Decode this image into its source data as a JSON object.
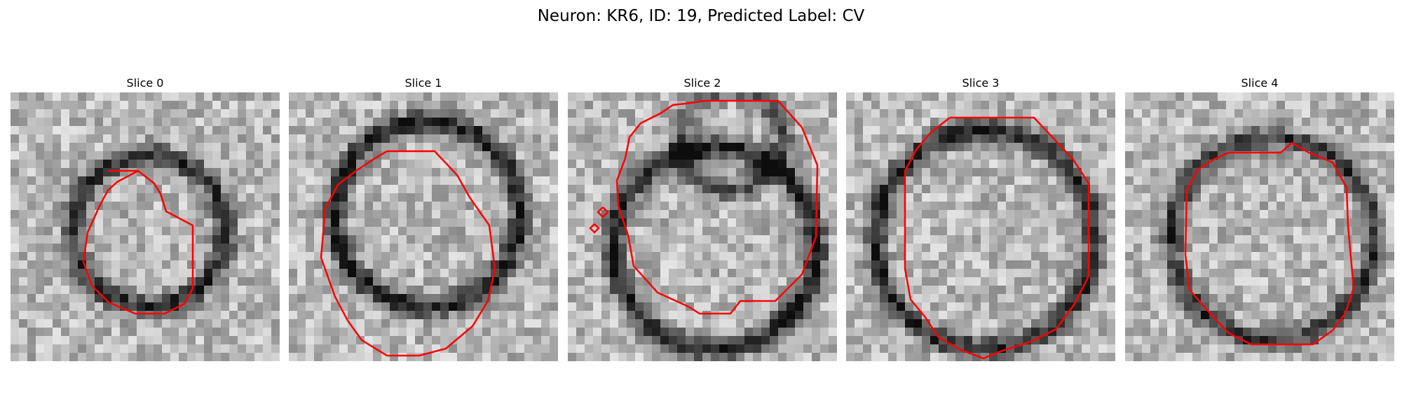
{
  "figure": {
    "title": "Neuron: KR6, ID: 19, Predicted Label: CV"
  },
  "panels": [
    {
      "title": "Slice 0"
    },
    {
      "title": "Slice 1"
    },
    {
      "title": "Slice 2"
    },
    {
      "title": "Slice 3"
    },
    {
      "title": "Slice 4"
    }
  ],
  "colors": {
    "contour": "#ff0000",
    "background": "#ffffff"
  }
}
